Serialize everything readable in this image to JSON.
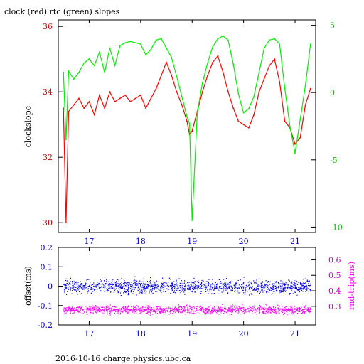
{
  "figure": {
    "title": "clock (red) rtc (green) slopes",
    "footer": "2016-10-16 charge.physics.ubc.ca"
  },
  "colors": {
    "clock": "#ff0000",
    "rtc": "#00ee00",
    "offset": "#0000ff",
    "rndtrip": "#ff00ff",
    "axis_bottom": "#0000cc",
    "axis_left_top": "#cc0000",
    "axis_right_top": "#00bb00",
    "axis_right_bottom": "#cc00cc"
  },
  "chart_data": [
    {
      "type": "line",
      "ylabel": "clockslope",
      "xlim": [
        16.4,
        21.4
      ],
      "ylim": [
        29.7,
        36.2
      ],
      "y2lim": [
        -10.4,
        5.4
      ],
      "xticks": [
        17,
        18,
        19,
        20,
        21
      ],
      "yticks": [
        30,
        32,
        34,
        36
      ],
      "y2ticks": [
        -10,
        -5,
        0,
        5
      ],
      "series": [
        {
          "name": "clock",
          "axis": "left",
          "x": [
            16.5,
            16.55,
            16.6,
            16.7,
            16.8,
            16.9,
            17.0,
            17.1,
            17.2,
            17.3,
            17.4,
            17.5,
            17.6,
            17.7,
            17.8,
            17.9,
            18.0,
            18.1,
            18.2,
            18.3,
            18.4,
            18.5,
            18.6,
            18.7,
            18.8,
            18.9,
            18.95,
            19.0,
            19.1,
            19.2,
            19.3,
            19.4,
            19.5,
            19.6,
            19.7,
            19.8,
            19.9,
            20.0,
            20.1,
            20.2,
            20.3,
            20.4,
            20.5,
            20.6,
            20.7,
            20.8,
            20.9,
            21.0,
            21.1,
            21.2,
            21.3
          ],
          "values": [
            33.5,
            30.0,
            33.4,
            33.6,
            33.8,
            33.5,
            33.7,
            33.3,
            33.9,
            33.5,
            34.0,
            33.7,
            33.8,
            33.9,
            33.7,
            33.8,
            33.9,
            33.5,
            33.8,
            34.1,
            34.5,
            34.9,
            34.5,
            34.0,
            33.6,
            33.1,
            32.7,
            32.8,
            33.4,
            34.0,
            34.5,
            34.9,
            35.1,
            34.6,
            34.0,
            33.5,
            33.1,
            33.0,
            32.9,
            33.3,
            34.0,
            34.4,
            34.8,
            35.0,
            34.3,
            33.1,
            32.9,
            32.4,
            32.6,
            33.6,
            34.1
          ]
        },
        {
          "name": "rtc",
          "axis": "right",
          "x": [
            16.5,
            16.55,
            16.6,
            16.7,
            16.8,
            16.9,
            17.0,
            17.1,
            17.2,
            17.3,
            17.4,
            17.5,
            17.6,
            17.7,
            17.8,
            17.9,
            18.0,
            18.1,
            18.2,
            18.3,
            18.4,
            18.5,
            18.6,
            18.7,
            18.8,
            18.9,
            18.95,
            19.0,
            19.1,
            19.2,
            19.3,
            19.4,
            19.5,
            19.6,
            19.7,
            19.8,
            19.9,
            20.0,
            20.1,
            20.2,
            20.3,
            20.4,
            20.5,
            20.6,
            20.7,
            20.8,
            20.9,
            21.0,
            21.1,
            21.2,
            21.3
          ],
          "values": [
            1.5,
            -3.5,
            1.6,
            1.0,
            1.5,
            2.2,
            2.5,
            2.0,
            3.0,
            1.5,
            3.3,
            2.0,
            3.5,
            3.7,
            3.8,
            3.7,
            3.6,
            2.8,
            3.2,
            3.9,
            4.0,
            3.3,
            2.6,
            1.2,
            -0.3,
            -1.8,
            -2.3,
            -9.5,
            -1.5,
            0.7,
            2.2,
            3.4,
            4.0,
            4.2,
            3.9,
            2.1,
            -0.1,
            -1.5,
            -1.2,
            -0.3,
            1.5,
            3.3,
            3.9,
            4.0,
            3.6,
            0.3,
            -2.5,
            -4.5,
            -2.0,
            0.5,
            3.6
          ]
        }
      ]
    },
    {
      "type": "scatter",
      "ylabel": "offset(ms)",
      "y2label": "rnd-trip(ms)",
      "xlim": [
        16.4,
        21.4
      ],
      "ylim": [
        -0.2,
        0.2
      ],
      "y2lim": [
        0.18,
        0.68
      ],
      "xticks": [
        17,
        18,
        19,
        20,
        21
      ],
      "yticks": [
        -0.2,
        -0.1,
        0,
        0.1,
        0.2
      ],
      "ytick_labels": [
        "-0.2",
        "-0.1",
        "0",
        "0.1",
        "0.2"
      ],
      "y2ticks": [
        0.3,
        0.4,
        0.5,
        0.6
      ],
      "series": [
        {
          "name": "offset",
          "axis": "left",
          "x_range": [
            16.5,
            21.3
          ],
          "center": 0.0,
          "spread": 0.03
        },
        {
          "name": "rnd-trip",
          "axis": "right",
          "x_range": [
            16.5,
            21.3
          ],
          "center": 0.28,
          "spread": 0.022
        }
      ]
    }
  ]
}
